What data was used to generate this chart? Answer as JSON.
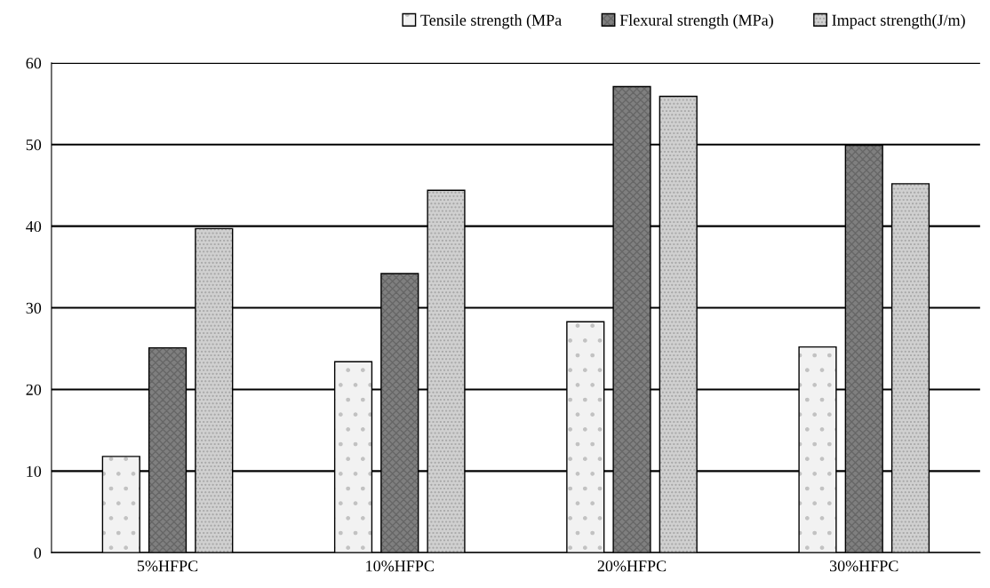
{
  "chart_data": {
    "type": "bar",
    "categories": [
      "5%HFPC",
      "10%HFPC",
      "20%HFPC",
      "30%HFPC"
    ],
    "series": [
      {
        "name": "Tensile strength (MPa",
        "color": "#f2f2f2",
        "values": [
          11.8,
          23.4,
          28.3,
          25.2
        ]
      },
      {
        "name": "Flexural strength (MPa)",
        "color": "#7f7f7f",
        "values": [
          25.1,
          34.2,
          57.1,
          49.9
        ]
      },
      {
        "name": "Impact strength(J/m)",
        "color": "#d0d0d0",
        "values": [
          39.7,
          44.4,
          55.9,
          45.2
        ]
      }
    ],
    "ylim": [
      0,
      60
    ],
    "yticks": [
      0,
      10,
      20,
      30,
      40,
      50,
      60
    ],
    "grid": "y",
    "legend": "top right"
  }
}
